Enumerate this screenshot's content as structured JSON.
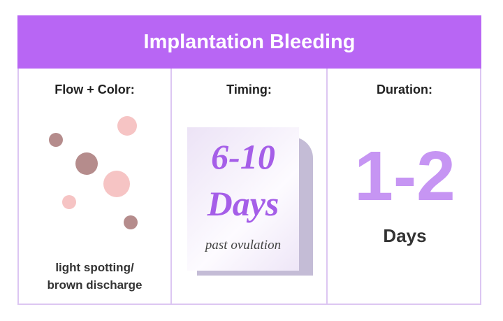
{
  "title": "Implantation Bleeding",
  "columns": [
    {
      "heading": "Flow + Color:",
      "note_line1": "light spotting/",
      "note_line2": "brown discharge"
    },
    {
      "heading": "Timing:",
      "value": "6-10",
      "unit": "Days",
      "sub": "past ovulation"
    },
    {
      "heading": "Duration:",
      "value": "1-2",
      "unit": "Days"
    }
  ],
  "colors": {
    "header": "#b866f4",
    "border": "#dcc6f2",
    "accent_text": "#a55ee8",
    "duration": "#c695f3",
    "dark_dot": "#b58c8c",
    "light_dot": "#f6c4c4"
  }
}
